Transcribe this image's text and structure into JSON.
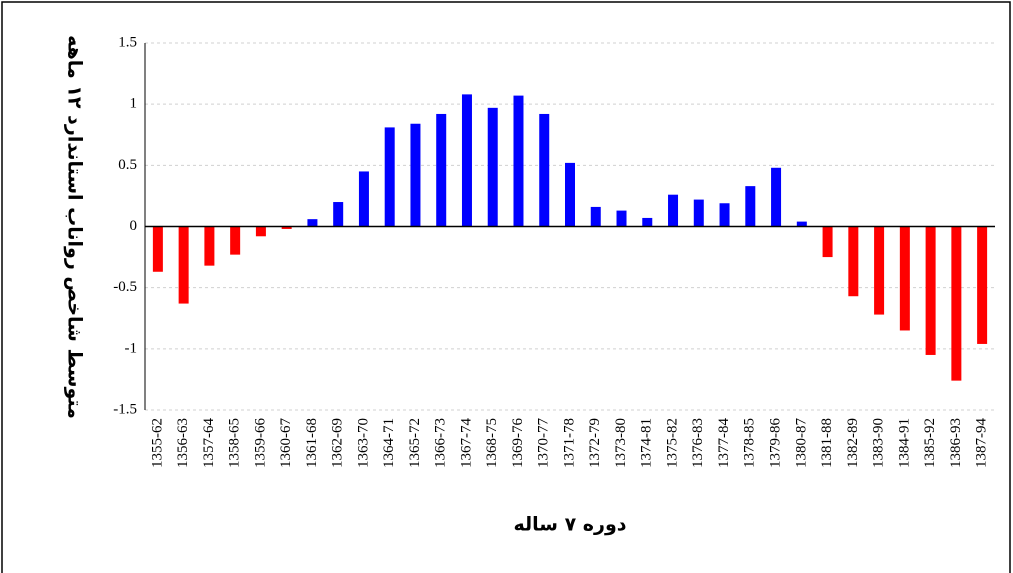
{
  "chart_data": {
    "type": "bar",
    "y_label": "متوسط شاخص رواناب استاندارد ۱۲ ماهه",
    "x_label": "دوره ۷ ساله",
    "categories": [
      "1355-62",
      "1356-63",
      "1357-64",
      "1358-65",
      "1359-66",
      "1360-67",
      "1361-68",
      "1362-69",
      "1363-70",
      "1364-71",
      "1365-72",
      "1366-73",
      "1367-74",
      "1368-75",
      "1369-76",
      "1370-77",
      "1371-78",
      "1372-79",
      "1373-80",
      "1374-81",
      "1375-82",
      "1376-83",
      "1377-84",
      "1378-85",
      "1379-86",
      "1380-87",
      "1381-88",
      "1382-89",
      "1383-90",
      "1384-91",
      "1385-92",
      "1386-93",
      "1387-94"
    ],
    "values": [
      -0.37,
      -0.63,
      -0.32,
      -0.23,
      -0.08,
      -0.02,
      0.06,
      0.2,
      0.45,
      0.81,
      0.84,
      0.92,
      1.08,
      0.97,
      1.07,
      0.92,
      0.52,
      0.16,
      0.13,
      0.07,
      0.26,
      0.22,
      0.19,
      0.33,
      0.48,
      0.04,
      -0.25,
      -0.57,
      -0.72,
      -0.85,
      -1.05,
      -1.26,
      -0.96
    ],
    "positive_color": "#0000ff",
    "negative_color": "#ff0000",
    "ylim": [
      -1.5,
      1.5
    ],
    "yticks": [
      -1.5,
      -1,
      -0.5,
      0,
      0.5,
      1,
      1.5
    ],
    "grid": true
  }
}
